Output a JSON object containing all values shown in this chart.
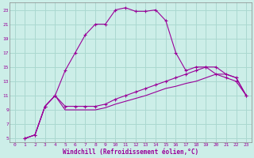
{
  "xlabel": "Windchill (Refroidissement éolien,°C)",
  "bg_color": "#cceee8",
  "grid_color": "#aad8d0",
  "line_color": "#990099",
  "xlim": [
    -0.5,
    23.5
  ],
  "ylim": [
    4.5,
    24
  ],
  "yticks": [
    5,
    7,
    9,
    11,
    13,
    15,
    17,
    19,
    21,
    23
  ],
  "xticks": [
    0,
    1,
    2,
    3,
    4,
    5,
    6,
    7,
    8,
    9,
    10,
    11,
    12,
    13,
    14,
    15,
    16,
    17,
    18,
    19,
    20,
    21,
    22,
    23
  ],
  "series1_x": [
    1,
    2,
    3,
    4,
    5,
    6,
    7,
    8,
    9,
    10,
    11,
    12,
    13,
    14,
    15,
    16,
    17,
    18,
    19,
    20,
    21,
    22,
    23
  ],
  "series1_y": [
    5,
    5.5,
    9.5,
    11,
    14.5,
    17,
    19.5,
    21,
    21,
    23,
    23.3,
    22.8,
    22.8,
    23,
    21.5,
    17,
    14.5,
    15,
    15,
    14,
    13.5,
    13,
    11
  ],
  "series2_x": [
    1,
    2,
    3,
    4,
    5,
    6,
    7,
    8,
    9,
    10,
    11,
    12,
    13,
    14,
    15,
    16,
    17,
    18,
    19,
    20,
    21,
    22,
    23
  ],
  "series2_y": [
    5,
    5.5,
    9.5,
    11,
    9.5,
    9.5,
    9.5,
    9.5,
    9.8,
    10.5,
    11,
    11.5,
    12,
    12.5,
    13,
    13.5,
    14,
    14.5,
    15,
    15,
    14,
    13.5,
    11
  ],
  "series3_x": [
    1,
    2,
    3,
    4,
    5,
    6,
    7,
    8,
    9,
    10,
    11,
    12,
    13,
    14,
    15,
    16,
    17,
    18,
    19,
    20,
    21,
    22,
    23
  ],
  "series3_y": [
    5,
    5.5,
    9.5,
    11,
    9,
    9,
    9,
    9,
    9.3,
    9.8,
    10.2,
    10.6,
    11,
    11.5,
    12,
    12.3,
    12.7,
    13,
    13.5,
    14,
    14,
    13.5,
    11
  ]
}
